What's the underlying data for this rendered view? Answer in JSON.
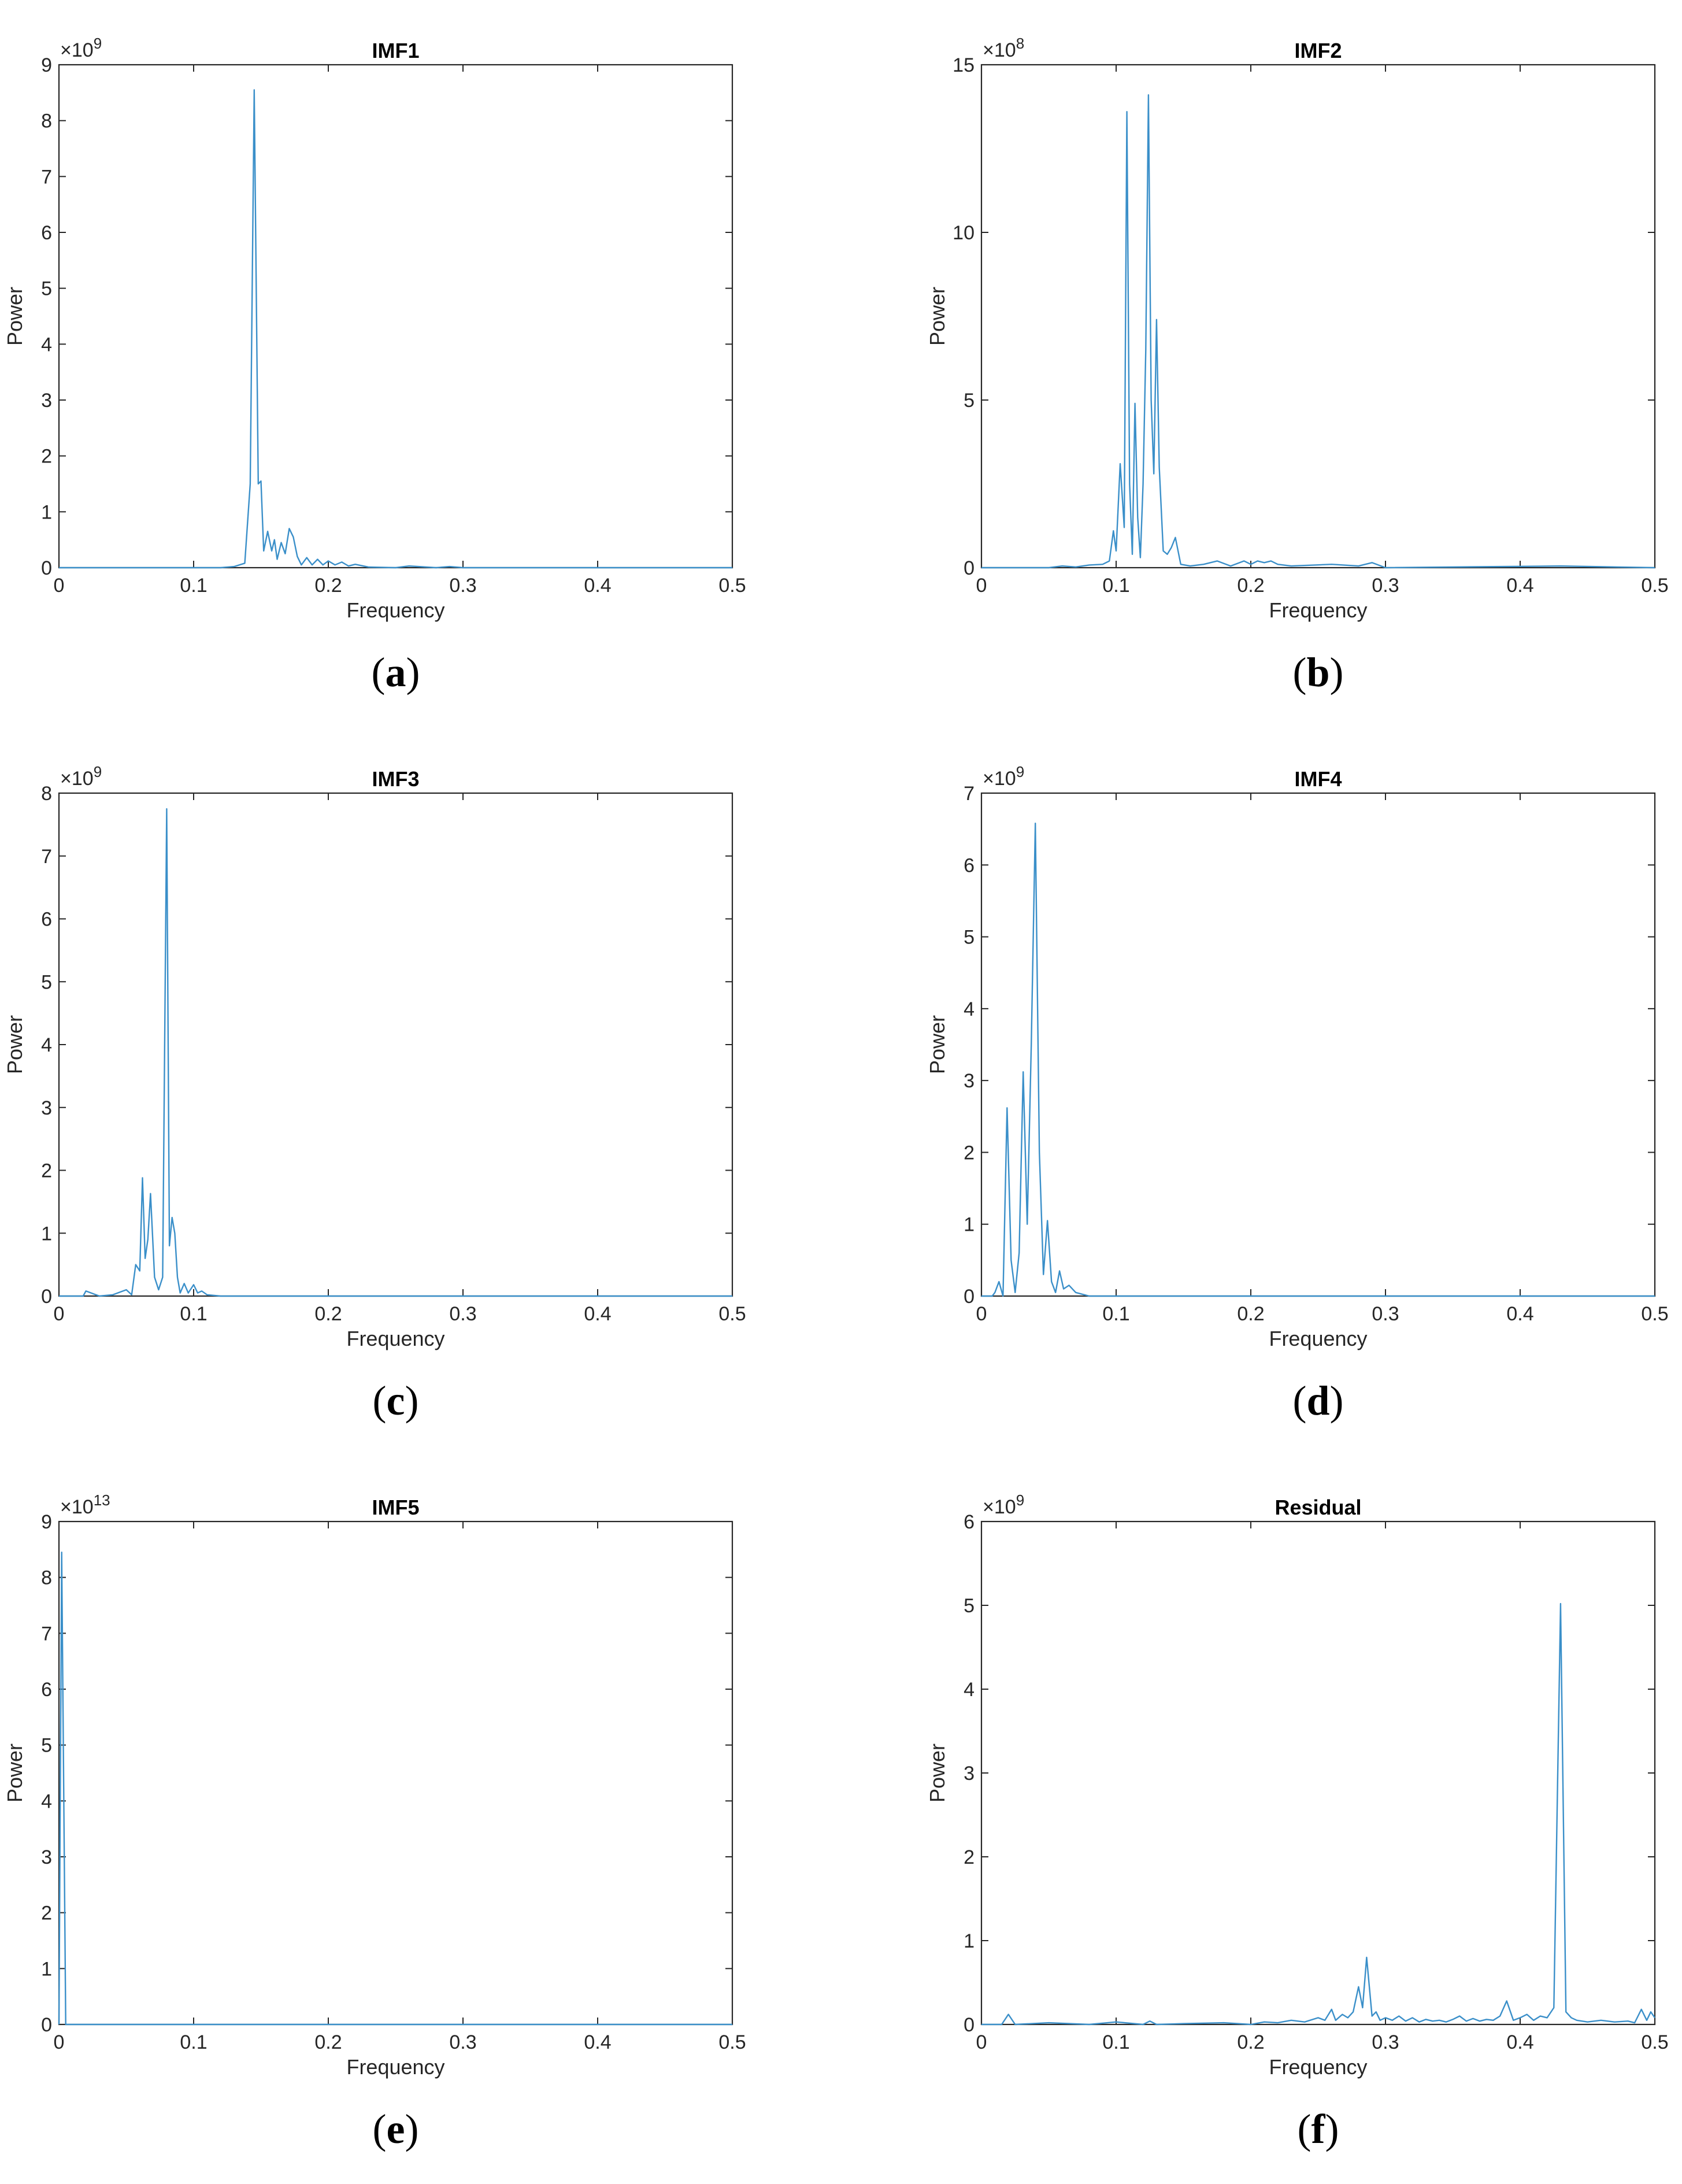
{
  "colors": {
    "series": "#3a8fc9"
  },
  "chart_data": [
    {
      "id": "a",
      "type": "line",
      "title": "IMF1",
      "xlabel": "Frequency",
      "ylabel": "Power",
      "exponent_base": "×10",
      "exponent_power": "9",
      "sublabel_open": "(",
      "sublabel_letter": "a",
      "sublabel_close": ")",
      "xlim": [
        0,
        0.5
      ],
      "ylim": [
        0,
        9
      ],
      "xticks": [
        0,
        0.1,
        0.2,
        0.3,
        0.4,
        0.5
      ],
      "xtick_labels": [
        "0",
        "0.1",
        "0.2",
        "0.3",
        "0.4",
        "0.5"
      ],
      "yticks": [
        0,
        1,
        2,
        3,
        4,
        5,
        6,
        7,
        8,
        9
      ],
      "ytick_labels": [
        "0",
        "1",
        "2",
        "3",
        "4",
        "5",
        "6",
        "7",
        "8",
        "9"
      ],
      "series": [
        {
          "x": [
            0,
            0.12,
            0.13,
            0.138,
            0.142,
            0.145,
            0.148,
            0.15,
            0.152,
            0.155,
            0.158,
            0.16,
            0.162,
            0.165,
            0.168,
            0.171,
            0.174,
            0.177,
            0.18,
            0.184,
            0.188,
            0.192,
            0.196,
            0.2,
            0.205,
            0.21,
            0.215,
            0.22,
            0.23,
            0.25,
            0.26,
            0.28,
            0.29,
            0.3,
            0.5
          ],
          "y": [
            0,
            0,
            0.02,
            0.08,
            1.5,
            8.55,
            1.5,
            1.55,
            0.3,
            0.65,
            0.3,
            0.5,
            0.15,
            0.45,
            0.25,
            0.7,
            0.55,
            0.2,
            0.05,
            0.18,
            0.05,
            0.15,
            0.05,
            0.12,
            0.05,
            0.1,
            0.03,
            0.06,
            0.01,
            0,
            0.03,
            0,
            0.02,
            0,
            0
          ]
        }
      ]
    },
    {
      "id": "b",
      "type": "line",
      "title": "IMF2",
      "xlabel": "Frequency",
      "ylabel": "Power",
      "exponent_base": "×10",
      "exponent_power": "8",
      "sublabel_open": "(",
      "sublabel_letter": "b",
      "sublabel_close": ")",
      "xlim": [
        0,
        0.5
      ],
      "ylim": [
        0,
        15
      ],
      "xticks": [
        0,
        0.1,
        0.2,
        0.3,
        0.4,
        0.5
      ],
      "xtick_labels": [
        "0",
        "0.1",
        "0.2",
        "0.3",
        "0.4",
        "0.5"
      ],
      "yticks": [
        0,
        5,
        10,
        15
      ],
      "ytick_labels": [
        "0",
        "5",
        "10",
        "15"
      ],
      "series": [
        {
          "x": [
            0,
            0.05,
            0.06,
            0.07,
            0.08,
            0.09,
            0.095,
            0.098,
            0.1,
            0.103,
            0.106,
            0.108,
            0.11,
            0.112,
            0.114,
            0.116,
            0.118,
            0.12,
            0.122,
            0.124,
            0.126,
            0.128,
            0.13,
            0.132,
            0.135,
            0.138,
            0.141,
            0.144,
            0.148,
            0.155,
            0.165,
            0.175,
            0.185,
            0.195,
            0.2,
            0.205,
            0.21,
            0.215,
            0.22,
            0.23,
            0.26,
            0.28,
            0.29,
            0.3,
            0.43,
            0.5
          ],
          "y": [
            0,
            0,
            0.05,
            0.02,
            0.08,
            0.1,
            0.2,
            1.1,
            0.5,
            3.1,
            1.2,
            13.6,
            2.5,
            0.4,
            4.9,
            1.5,
            0.3,
            2.5,
            6.5,
            14.1,
            5.0,
            2.8,
            7.4,
            3.0,
            0.5,
            0.4,
            0.6,
            0.9,
            0.1,
            0.05,
            0.1,
            0.2,
            0.05,
            0.2,
            0.1,
            0.2,
            0.15,
            0.2,
            0.1,
            0.05,
            0.1,
            0.05,
            0.15,
            0,
            0.05,
            0
          ]
        }
      ]
    },
    {
      "id": "c",
      "type": "line",
      "title": "IMF3",
      "xlabel": "Frequency",
      "ylabel": "Power",
      "exponent_base": "×10",
      "exponent_power": "9",
      "sublabel_open": "(",
      "sublabel_letter": "c",
      "sublabel_close": ")",
      "xlim": [
        0,
        0.5
      ],
      "ylim": [
        0,
        8
      ],
      "xticks": [
        0,
        0.1,
        0.2,
        0.3,
        0.4,
        0.5
      ],
      "xtick_labels": [
        "0",
        "0.1",
        "0.2",
        "0.3",
        "0.4",
        "0.5"
      ],
      "yticks": [
        0,
        1,
        2,
        3,
        4,
        5,
        6,
        7,
        8
      ],
      "ytick_labels": [
        "0",
        "1",
        "2",
        "3",
        "4",
        "5",
        "6",
        "7",
        "8"
      ],
      "series": [
        {
          "x": [
            0,
            0.018,
            0.02,
            0.03,
            0.04,
            0.05,
            0.054,
            0.057,
            0.06,
            0.062,
            0.064,
            0.066,
            0.068,
            0.071,
            0.074,
            0.077,
            0.08,
            0.082,
            0.084,
            0.086,
            0.088,
            0.09,
            0.093,
            0.096,
            0.1,
            0.103,
            0.106,
            0.11,
            0.12,
            0.5
          ],
          "y": [
            0,
            0,
            0.08,
            0,
            0.02,
            0.1,
            0.02,
            0.5,
            0.4,
            1.88,
            0.6,
            0.9,
            1.63,
            0.3,
            0.1,
            0.3,
            7.75,
            0.8,
            1.25,
            1.0,
            0.3,
            0.05,
            0.2,
            0.05,
            0.18,
            0.05,
            0.08,
            0.02,
            0,
            0
          ]
        }
      ]
    },
    {
      "id": "d",
      "type": "line",
      "title": "IMF4",
      "xlabel": "Frequency",
      "ylabel": "Power",
      "exponent_base": "×10",
      "exponent_power": "9",
      "sublabel_open": "(",
      "sublabel_letter": "d",
      "sublabel_close": ")",
      "xlim": [
        0,
        0.5
      ],
      "ylim": [
        0,
        7
      ],
      "xticks": [
        0,
        0.1,
        0.2,
        0.3,
        0.4,
        0.5
      ],
      "xtick_labels": [
        "0",
        "0.1",
        "0.2",
        "0.3",
        "0.4",
        "0.5"
      ],
      "yticks": [
        0,
        1,
        2,
        3,
        4,
        5,
        6,
        7
      ],
      "ytick_labels": [
        "0",
        "1",
        "2",
        "3",
        "4",
        "5",
        "6",
        "7"
      ],
      "series": [
        {
          "x": [
            0,
            0.008,
            0.01,
            0.013,
            0.016,
            0.019,
            0.022,
            0.025,
            0.028,
            0.031,
            0.034,
            0.037,
            0.04,
            0.043,
            0.046,
            0.049,
            0.052,
            0.055,
            0.058,
            0.061,
            0.065,
            0.07,
            0.08,
            0.5
          ],
          "y": [
            0,
            0,
            0.05,
            0.2,
            0,
            2.62,
            0.5,
            0.05,
            0.6,
            3.12,
            1.0,
            3.5,
            6.58,
            2.0,
            0.3,
            1.05,
            0.2,
            0.05,
            0.35,
            0.1,
            0.15,
            0.05,
            0,
            0
          ]
        }
      ]
    },
    {
      "id": "e",
      "type": "line",
      "title": "IMF5",
      "xlabel": "Frequency",
      "ylabel": "Power",
      "exponent_base": "×10",
      "exponent_power": "13",
      "sublabel_open": "(",
      "sublabel_letter": "e",
      "sublabel_close": ")",
      "xlim": [
        0,
        0.5
      ],
      "ylim": [
        0,
        9
      ],
      "xticks": [
        0,
        0.1,
        0.2,
        0.3,
        0.4,
        0.5
      ],
      "xtick_labels": [
        "0",
        "0.1",
        "0.2",
        "0.3",
        "0.4",
        "0.5"
      ],
      "yticks": [
        0,
        1,
        2,
        3,
        4,
        5,
        6,
        7,
        8,
        9
      ],
      "ytick_labels": [
        "0",
        "1",
        "2",
        "3",
        "4",
        "5",
        "6",
        "7",
        "8",
        "9"
      ],
      "series": [
        {
          "x": [
            0,
            0.002,
            0.005,
            0.5
          ],
          "y": [
            0,
            8.45,
            0,
            0
          ]
        }
      ]
    },
    {
      "id": "f",
      "type": "line",
      "title": "Residual",
      "xlabel": "Frequency",
      "ylabel": "Power",
      "exponent_base": "×10",
      "exponent_power": "9",
      "sublabel_open": "(",
      "sublabel_letter": "f",
      "sublabel_close": ")",
      "xlim": [
        0,
        0.5
      ],
      "ylim": [
        0,
        6
      ],
      "xticks": [
        0,
        0.1,
        0.2,
        0.3,
        0.4,
        0.5
      ],
      "xtick_labels": [
        "0",
        "0.1",
        "0.2",
        "0.3",
        "0.4",
        "0.5"
      ],
      "yticks": [
        0,
        1,
        2,
        3,
        4,
        5,
        6
      ],
      "ytick_labels": [
        "0",
        "1",
        "2",
        "3",
        "4",
        "5",
        "6"
      ],
      "series": [
        {
          "x": [
            0,
            0.015,
            0.02,
            0.025,
            0.05,
            0.08,
            0.1,
            0.12,
            0.125,
            0.13,
            0.15,
            0.18,
            0.2,
            0.21,
            0.22,
            0.23,
            0.24,
            0.25,
            0.255,
            0.26,
            0.263,
            0.268,
            0.272,
            0.276,
            0.28,
            0.283,
            0.286,
            0.29,
            0.293,
            0.296,
            0.3,
            0.305,
            0.31,
            0.315,
            0.32,
            0.325,
            0.33,
            0.335,
            0.34,
            0.345,
            0.35,
            0.355,
            0.36,
            0.365,
            0.37,
            0.375,
            0.38,
            0.385,
            0.39,
            0.395,
            0.4,
            0.405,
            0.41,
            0.415,
            0.42,
            0.425,
            0.43,
            0.434,
            0.438,
            0.442,
            0.45,
            0.46,
            0.47,
            0.48,
            0.485,
            0.49,
            0.494,
            0.497,
            0.5
          ],
          "y": [
            0,
            0,
            0.12,
            0,
            0.02,
            0,
            0.03,
            0,
            0.04,
            0,
            0.01,
            0.02,
            0,
            0.03,
            0.02,
            0.05,
            0.03,
            0.08,
            0.05,
            0.18,
            0.05,
            0.12,
            0.08,
            0.15,
            0.45,
            0.2,
            0.8,
            0.1,
            0.15,
            0.05,
            0.08,
            0.05,
            0.1,
            0.04,
            0.08,
            0.03,
            0.06,
            0.04,
            0.05,
            0.03,
            0.06,
            0.1,
            0.04,
            0.07,
            0.04,
            0.06,
            0.05,
            0.1,
            0.28,
            0.05,
            0.08,
            0.12,
            0.05,
            0.1,
            0.08,
            0.2,
            5.02,
            0.15,
            0.08,
            0.05,
            0.03,
            0.05,
            0.03,
            0.04,
            0.02,
            0.18,
            0.05,
            0.15,
            0.08
          ]
        }
      ]
    }
  ]
}
